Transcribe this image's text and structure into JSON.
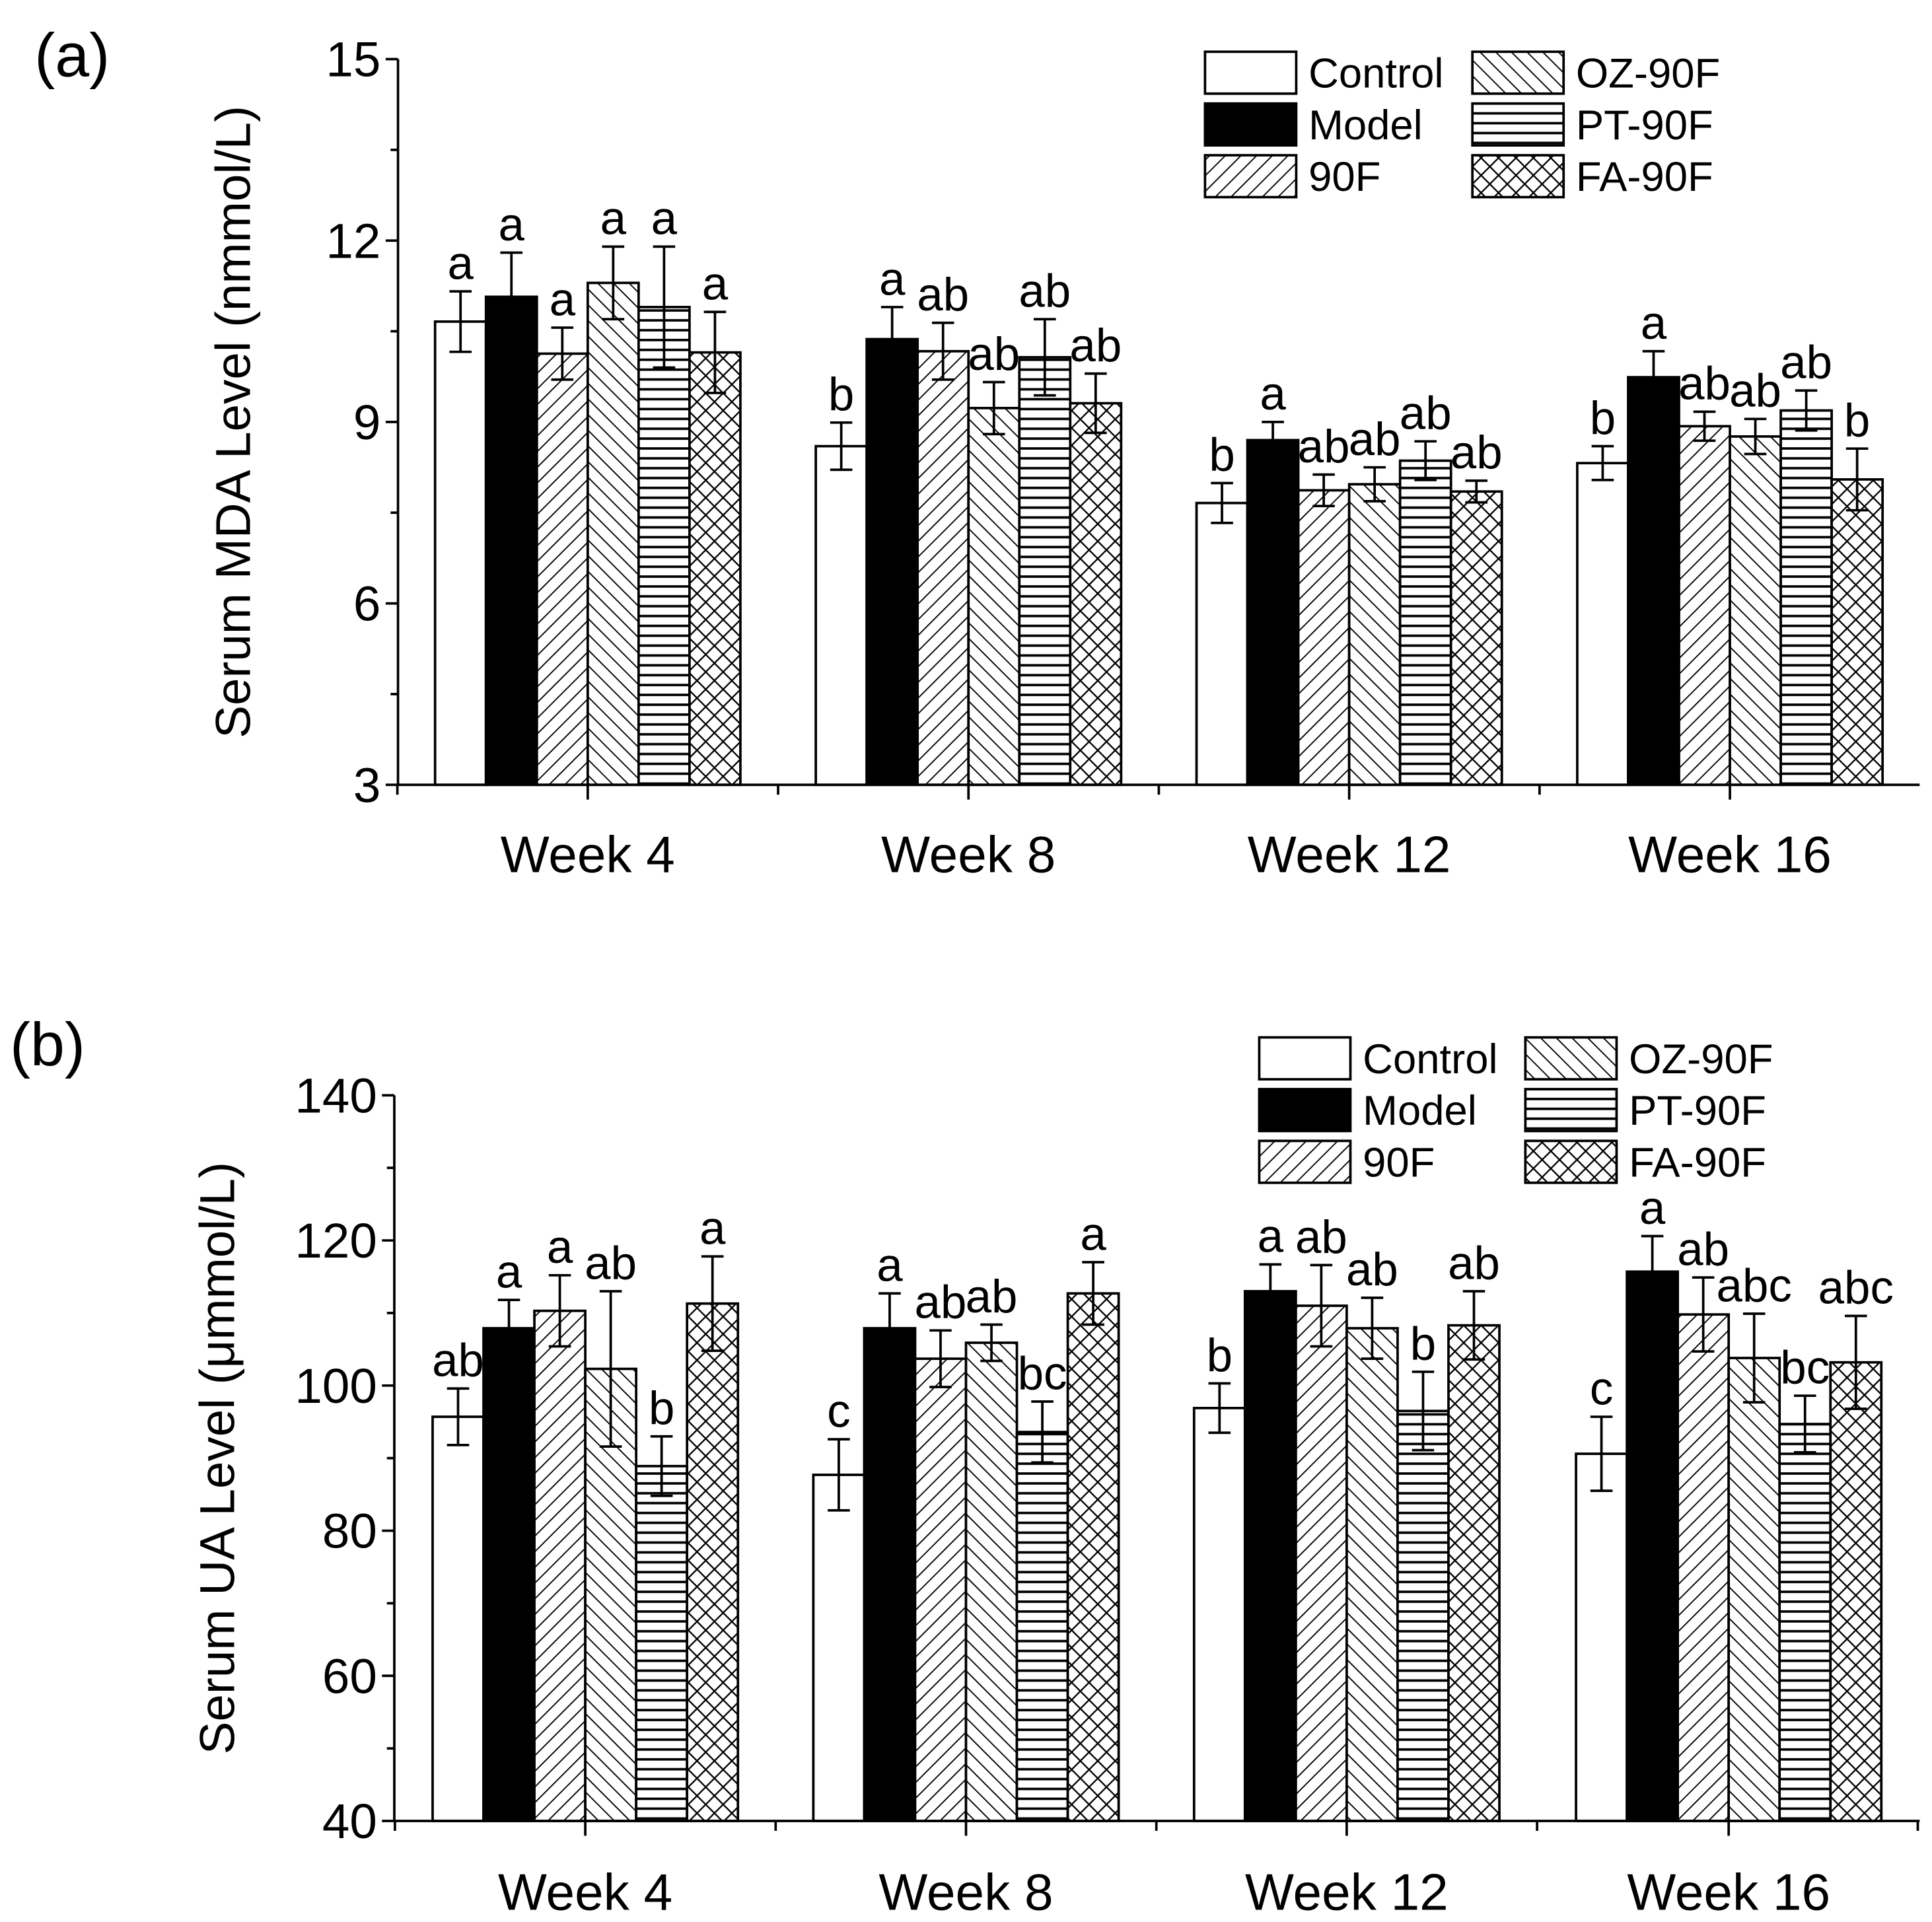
{
  "chart_data": [
    {
      "type": "bar",
      "panel_label": "(a)",
      "ylabel": "Serum MDA Level (nmmol/L)",
      "xlabel": "",
      "ylim": [
        3,
        15
      ],
      "yticks": [
        3,
        6,
        9,
        12,
        15
      ],
      "yminor_step": 1.5,
      "categories": [
        "Week 4",
        "Week 8",
        "Week 12",
        "Week 16"
      ],
      "legend_position": "top-right",
      "series": [
        {
          "name": "Control",
          "pattern": "none",
          "values": [
            10.66,
            8.6,
            7.66,
            8.32
          ],
          "errors": [
            0.5,
            0.39,
            0.33,
            0.28
          ],
          "letters": [
            "a",
            "b",
            "b",
            "b"
          ]
        },
        {
          "name": "Model",
          "pattern": "solid",
          "values": [
            11.07,
            10.37,
            8.7,
            9.74
          ],
          "errors": [
            0.73,
            0.53,
            0.3,
            0.43
          ],
          "letters": [
            "a",
            "a",
            "a",
            "a"
          ]
        },
        {
          "name": "90F",
          "pattern": "forward-diagonal",
          "values": [
            10.13,
            10.17,
            7.87,
            8.93
          ],
          "errors": [
            0.43,
            0.47,
            0.26,
            0.24
          ],
          "letters": [
            "a",
            "ab",
            "ab",
            "ab"
          ]
        },
        {
          "name": "OZ-90F",
          "pattern": "back-diagonal",
          "values": [
            11.3,
            9.23,
            7.97,
            8.76
          ],
          "errors": [
            0.6,
            0.43,
            0.28,
            0.29
          ],
          "letters": [
            "a",
            "ab",
            "ab",
            "ab"
          ]
        },
        {
          "name": "PT-90F",
          "pattern": "horizontal",
          "values": [
            10.9,
            10.07,
            8.36,
            9.19
          ],
          "errors": [
            1.0,
            0.63,
            0.32,
            0.33
          ],
          "letters": [
            "a",
            "ab",
            "ab",
            "ab"
          ]
        },
        {
          "name": "FA-90F",
          "pattern": "crosshatch",
          "values": [
            10.15,
            9.31,
            7.85,
            8.05
          ],
          "errors": [
            0.67,
            0.49,
            0.18,
            0.51
          ],
          "letters": [
            "a",
            "ab",
            "ab",
            "b"
          ]
        }
      ]
    },
    {
      "type": "bar",
      "panel_label": "(b)",
      "ylabel": "Serum UA Level (μmmol/L)",
      "xlabel": "",
      "ylim": [
        40,
        140
      ],
      "yticks": [
        40,
        60,
        80,
        100,
        120,
        140
      ],
      "yminor_step": 10,
      "categories": [
        "Week 4",
        "Week 8",
        "Week 12",
        "Week 16"
      ],
      "legend_position": "top-right",
      "series": [
        {
          "name": "Control",
          "pattern": "none",
          "values": [
            95.7,
            87.7,
            96.9,
            90.6
          ],
          "errors": [
            3.9,
            4.9,
            3.4,
            5.1
          ],
          "letters": [
            "ab",
            "c",
            "b",
            "c"
          ]
        },
        {
          "name": "Model",
          "pattern": "solid",
          "values": [
            107.9,
            107.9,
            113.0,
            115.7
          ],
          "errors": [
            3.9,
            4.8,
            3.7,
            4.9
          ],
          "letters": [
            "a",
            "a",
            "a",
            "a"
          ]
        },
        {
          "name": "90F",
          "pattern": "forward-diagonal",
          "values": [
            110.3,
            103.7,
            111.0,
            109.8
          ],
          "errors": [
            4.9,
            3.9,
            5.6,
            5.1
          ],
          "letters": [
            "a",
            "ab",
            "ab",
            "ab"
          ]
        },
        {
          "name": "OZ-90F",
          "pattern": "back-diagonal",
          "values": [
            102.3,
            105.9,
            107.9,
            103.8
          ],
          "errors": [
            10.7,
            2.5,
            4.2,
            6.1
          ],
          "letters": [
            "ab",
            "ab",
            "ab",
            "abc"
          ]
        },
        {
          "name": "PT-90F",
          "pattern": "horizontal",
          "values": [
            88.9,
            93.6,
            96.5,
            94.7
          ],
          "errors": [
            4.1,
            4.2,
            5.4,
            3.9
          ],
          "letters": [
            "b",
            "bc",
            "b",
            "bc"
          ]
        },
        {
          "name": "FA-90F",
          "pattern": "crosshatch",
          "values": [
            111.3,
            112.7,
            108.3,
            103.2
          ],
          "errors": [
            6.5,
            4.3,
            4.7,
            6.4
          ],
          "letters": [
            "a",
            "a",
            "ab",
            "abc"
          ]
        }
      ]
    }
  ]
}
